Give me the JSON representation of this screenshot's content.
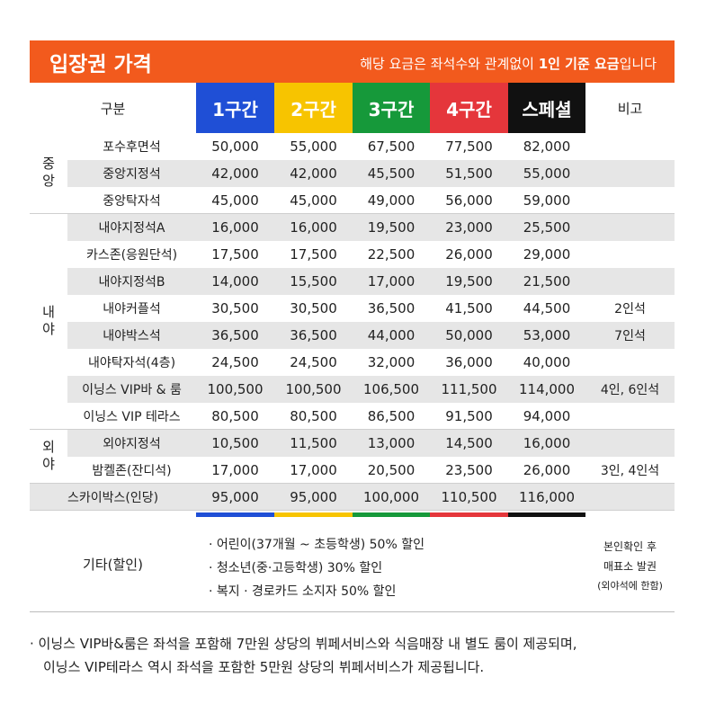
{
  "header": {
    "title": "입장권 가격",
    "note": [
      "해당 요금은 좌석수와 관계없이 ",
      "1인 기준 요금",
      "입니다"
    ]
  },
  "table": {
    "columns": [
      "구분",
      "1구간",
      "2구간",
      "3구간",
      "4구간",
      "스페셜",
      "비고"
    ],
    "groups": [
      {
        "label": "중앙",
        "rows": [
          {
            "seat": "포수후면석",
            "prices": [
              "50,000",
              "55,000",
              "67,500",
              "77,500",
              "82,000"
            ]
          },
          {
            "seat": "중앙지정석",
            "prices": [
              "42,000",
              "42,000",
              "45,500",
              "51,500",
              "55,000"
            ]
          },
          {
            "seat": "중앙탁자석",
            "prices": [
              "45,000",
              "45,000",
              "49,000",
              "56,000",
              "59,000"
            ]
          }
        ]
      },
      {
        "label": "내야",
        "rows": [
          {
            "seat": "내야지정석A",
            "prices": [
              "16,000",
              "16,000",
              "19,500",
              "23,000",
              "25,500"
            ]
          },
          {
            "seat": "카스존(응원단석)",
            "prices": [
              "17,500",
              "17,500",
              "22,500",
              "26,000",
              "29,000"
            ]
          },
          {
            "seat": "내야지정석B",
            "prices": [
              "14,000",
              "15,500",
              "17,000",
              "19,500",
              "21,500"
            ]
          },
          {
            "seat": "내야커플석",
            "prices": [
              "30,500",
              "30,500",
              "36,500",
              "41,500",
              "44,500"
            ],
            "remark": "2인석"
          },
          {
            "seat": "내야박스석",
            "prices": [
              "36,500",
              "36,500",
              "44,000",
              "50,000",
              "53,000"
            ],
            "remark": "7인석"
          },
          {
            "seat": "내야탁자석(4층)",
            "prices": [
              "24,500",
              "24,500",
              "32,000",
              "36,000",
              "40,000"
            ]
          },
          {
            "seat": "이닝스 VIP바 & 룸",
            "prices": [
              "100,500",
              "100,500",
              "106,500",
              "111,500",
              "114,000"
            ],
            "remark": "4인, 6인석"
          },
          {
            "seat": "이닝스 VIP 테라스",
            "prices": [
              "80,500",
              "80,500",
              "86,500",
              "91,500",
              "94,000"
            ]
          }
        ]
      },
      {
        "label": "외야",
        "rows": [
          {
            "seat": "외야지정석",
            "prices": [
              "10,500",
              "11,500",
              "13,000",
              "14,500",
              "16,000"
            ]
          },
          {
            "seat": "밤켈존(잔디석)",
            "prices": [
              "17,000",
              "17,000",
              "20,500",
              "23,500",
              "26,000"
            ],
            "remark": "3인, 4인석"
          }
        ]
      },
      {
        "rows": [
          {
            "seat": "스카이박스(인당)",
            "prices": [
              "95,000",
              "95,000",
              "100,000",
              "110,500",
              "116,000"
            ]
          }
        ]
      }
    ],
    "other": {
      "label": "기타(할인)",
      "items": [
        "· 어린이(37개월 ~ 초등학생) 50% 할인",
        "· 청소년(중·고등학생) 30% 할인",
        "· 복지 · 경로카드 소지자 50% 할인"
      ],
      "remark": [
        "본인확인 후",
        "매표소 발권",
        "(외야석에 한함)"
      ]
    }
  },
  "footnote": [
    "· 이닝스 VIP바&룸은 좌석을 포함해 7만원 상당의 뷔페서비스와 식음매장 내 별도 룸이 제공되며,",
    "이닝스 VIP테라스 역시 좌석을 포함한 5만원 상당의 뷔페서비스가 제공됩니다."
  ]
}
